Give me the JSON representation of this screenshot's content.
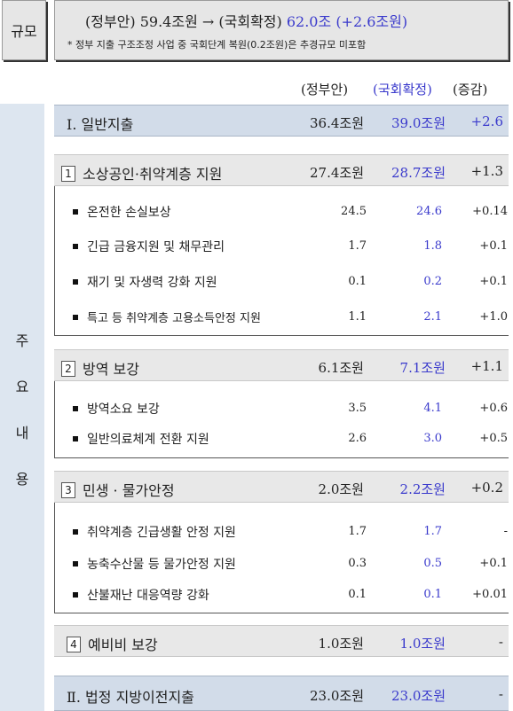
{
  "scale": {
    "label": "규모",
    "gov": "(정부안) 59.4조원",
    "arrow": "→",
    "final_label": "(국회확정)",
    "final_value": "62.0조",
    "change": "(+2.6조원)",
    "note": "* 정부 지출 구조조정 사업 중 국회단계 복원(0.2조원)은 추경규모 미포함"
  },
  "headers": {
    "gov": "(정부안)",
    "final": "(국회확정)",
    "diff": "(증감)"
  },
  "side_label": [
    "주",
    "요",
    "내",
    "용"
  ],
  "general": {
    "title": "Ⅰ. 일반지출",
    "gov": "36.4조원",
    "final": "39.0조원",
    "diff": "+2.6"
  },
  "sections": [
    {
      "num": "1",
      "title": "소상공인·취약계층 지원",
      "gov": "27.4조원",
      "final": "28.7조원",
      "diff": "+1.3",
      "items": [
        {
          "label": "온전한 손실보상",
          "gov": "24.5",
          "final": "24.6",
          "diff": "+0.14"
        },
        {
          "label": "긴급 금융지원 및 채무관리",
          "gov": "1.7",
          "final": "1.8",
          "diff": "+0.1"
        },
        {
          "label": "재기 및 자생력 강화 지원",
          "gov": "0.1",
          "final": "0.2",
          "diff": "+0.1"
        },
        {
          "label": "특고 등 취약계층 고용소득안정 지원",
          "gov": "1.1",
          "final": "2.1",
          "diff": "+1.0"
        }
      ]
    },
    {
      "num": "2",
      "title": "방역 보강",
      "gov": "6.1조원",
      "final": "7.1조원",
      "diff": "+1.1",
      "items": [
        {
          "label": "방역소요 보강",
          "gov": "3.5",
          "final": "4.1",
          "diff": "+0.6"
        },
        {
          "label": "일반의료체계 전환 지원",
          "gov": "2.6",
          "final": "3.0",
          "diff": "+0.5"
        }
      ]
    },
    {
      "num": "3",
      "title": "민생 · 물가안정",
      "gov": "2.0조원",
      "final": "2.2조원",
      "diff": "+0.2",
      "items": [
        {
          "label": "취약계층 긴급생활 안정 지원",
          "gov": "1.7",
          "final": "1.7",
          "diff": "-"
        },
        {
          "label": "농축수산물 등 물가안정 지원",
          "gov": "0.3",
          "final": "0.5",
          "diff": "+0.1"
        },
        {
          "label": "산불재난 대응역량 강화",
          "gov": "0.1",
          "final": "0.1",
          "diff": "+0.01"
        }
      ]
    },
    {
      "num": "4",
      "title": "예비비 보강",
      "gov": "1.0조원",
      "final": "1.0조원",
      "diff": "-",
      "items": []
    }
  ],
  "local": {
    "title": "Ⅱ. 법정 지방이전지출",
    "gov": "23.0조원",
    "final": "23.0조원",
    "diff": "-"
  }
}
